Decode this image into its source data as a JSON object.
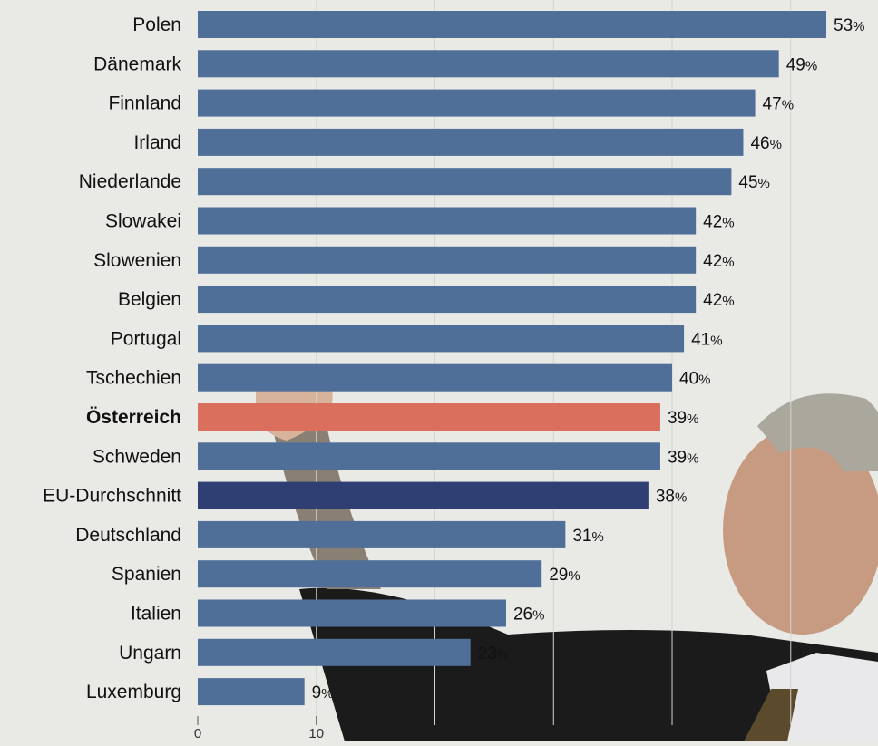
{
  "chart_data": {
    "type": "bar",
    "orientation": "horizontal",
    "categories": [
      "Polen",
      "Dänemark",
      "Finnland",
      "Irland",
      "Niederlande",
      "Slowakei",
      "Slowenien",
      "Belgien",
      "Portugal",
      "Tschechien",
      "Österreich",
      "Schweden",
      "EU-Durchschnitt",
      "Deutschland",
      "Spanien",
      "Italien",
      "Ungarn",
      "Luxemburg"
    ],
    "values": [
      53,
      49,
      47,
      46,
      45,
      42,
      42,
      42,
      41,
      40,
      39,
      39,
      38,
      31,
      29,
      26,
      23,
      9
    ],
    "value_labels": [
      "53%",
      "49%",
      "47%",
      "46%",
      "45%",
      "42%",
      "42%",
      "42%",
      "41%",
      "40%",
      "39%",
      "39%",
      "38%",
      "31%",
      "29%",
      "26%",
      "23%",
      "9%"
    ],
    "highlight": {
      "Österreich": "#d96f5c",
      "EU-Durchschnitt": "#2f3f74"
    },
    "bar_color": "#4f6f98",
    "x_ticks": [
      "0",
      "10"
    ],
    "xlim": [
      0,
      53
    ],
    "grid": true,
    "title": "",
    "xlabel": "",
    "ylabel": ""
  }
}
